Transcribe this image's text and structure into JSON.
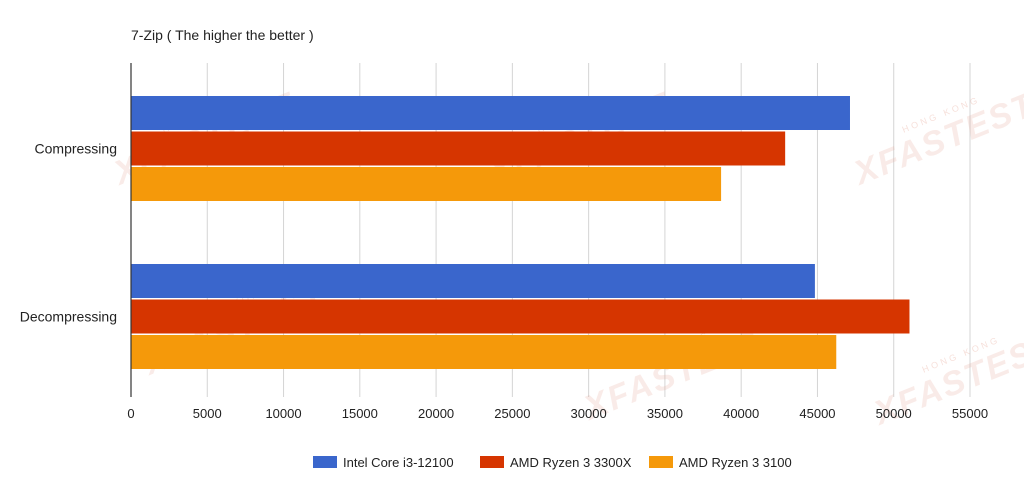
{
  "chart_data": {
    "type": "bar",
    "orientation": "horizontal",
    "title": "7-Zip ( The higher the better )",
    "categories": [
      "Compressing",
      "Decompressing"
    ],
    "series": [
      {
        "name": "Intel Core i3-12100",
        "color": "#3a66cc",
        "values": [
          47100,
          44800
        ]
      },
      {
        "name": "AMD Ryzen 3 3300X",
        "color": "#d63500",
        "values": [
          42850,
          51000
        ]
      },
      {
        "name": "AMD Ryzen 3 3100",
        "color": "#f5990a",
        "values": [
          38650,
          46200
        ]
      }
    ],
    "xlim": [
      0,
      55000
    ],
    "xticks": [
      0,
      5000,
      10000,
      15000,
      20000,
      25000,
      30000,
      35000,
      40000,
      45000,
      50000,
      55000
    ],
    "tick_labels": [
      "0",
      "5000",
      "10000",
      "15000",
      "20000",
      "25000",
      "30000",
      "35000",
      "40000",
      "45000",
      "50000",
      "55000"
    ],
    "grid": true,
    "legend_position": "bottom"
  },
  "watermark": {
    "text": "XFASTEST",
    "subtext": "HONG KONG"
  }
}
